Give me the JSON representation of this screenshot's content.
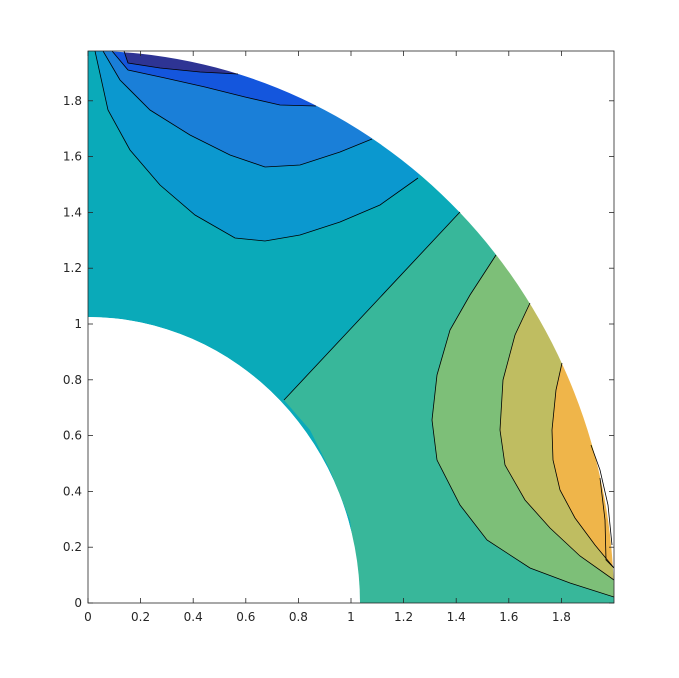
{
  "chart_data": {
    "type": "contourf",
    "title": "",
    "xlabel": "",
    "ylabel": "",
    "xlim": [
      0,
      2
    ],
    "ylim": [
      0,
      2
    ],
    "grid": false,
    "domain": {
      "shape": "quarter-annulus",
      "inner_radius": 1.0,
      "outer_radius": 2.0
    },
    "x_ticks": [
      "0",
      "0.2",
      "0.4",
      "0.6",
      "0.8",
      "1",
      "1.2",
      "1.4",
      "1.6",
      "1.8"
    ],
    "y_ticks": [
      "0",
      "0.2",
      "0.4",
      "0.6",
      "0.8",
      "1",
      "1.2",
      "1.4",
      "1.6",
      "1.8"
    ],
    "x_tick_values": [
      0,
      0.2,
      0.4,
      0.6,
      0.8,
      1,
      1.2,
      1.4,
      1.6,
      1.8
    ],
    "y_tick_values": [
      0,
      0.2,
      0.4,
      0.6,
      0.8,
      1,
      1.2,
      1.4,
      1.6,
      1.8
    ],
    "colormap": "parula",
    "fill_colors": {
      "level_-4": "#2e3494",
      "level_-3": "#1456dd",
      "level_-2": "#1a7fd8",
      "level_-1": "#0b98cf",
      "level_0": "#0aaab9",
      "level_1": "#38b79a",
      "level_2": "#7dbf78",
      "level_3": "#bfbd61",
      "level_4": "#efb54a",
      "level_5": "#f7d520"
    },
    "contour_line_color": "#000000"
  }
}
